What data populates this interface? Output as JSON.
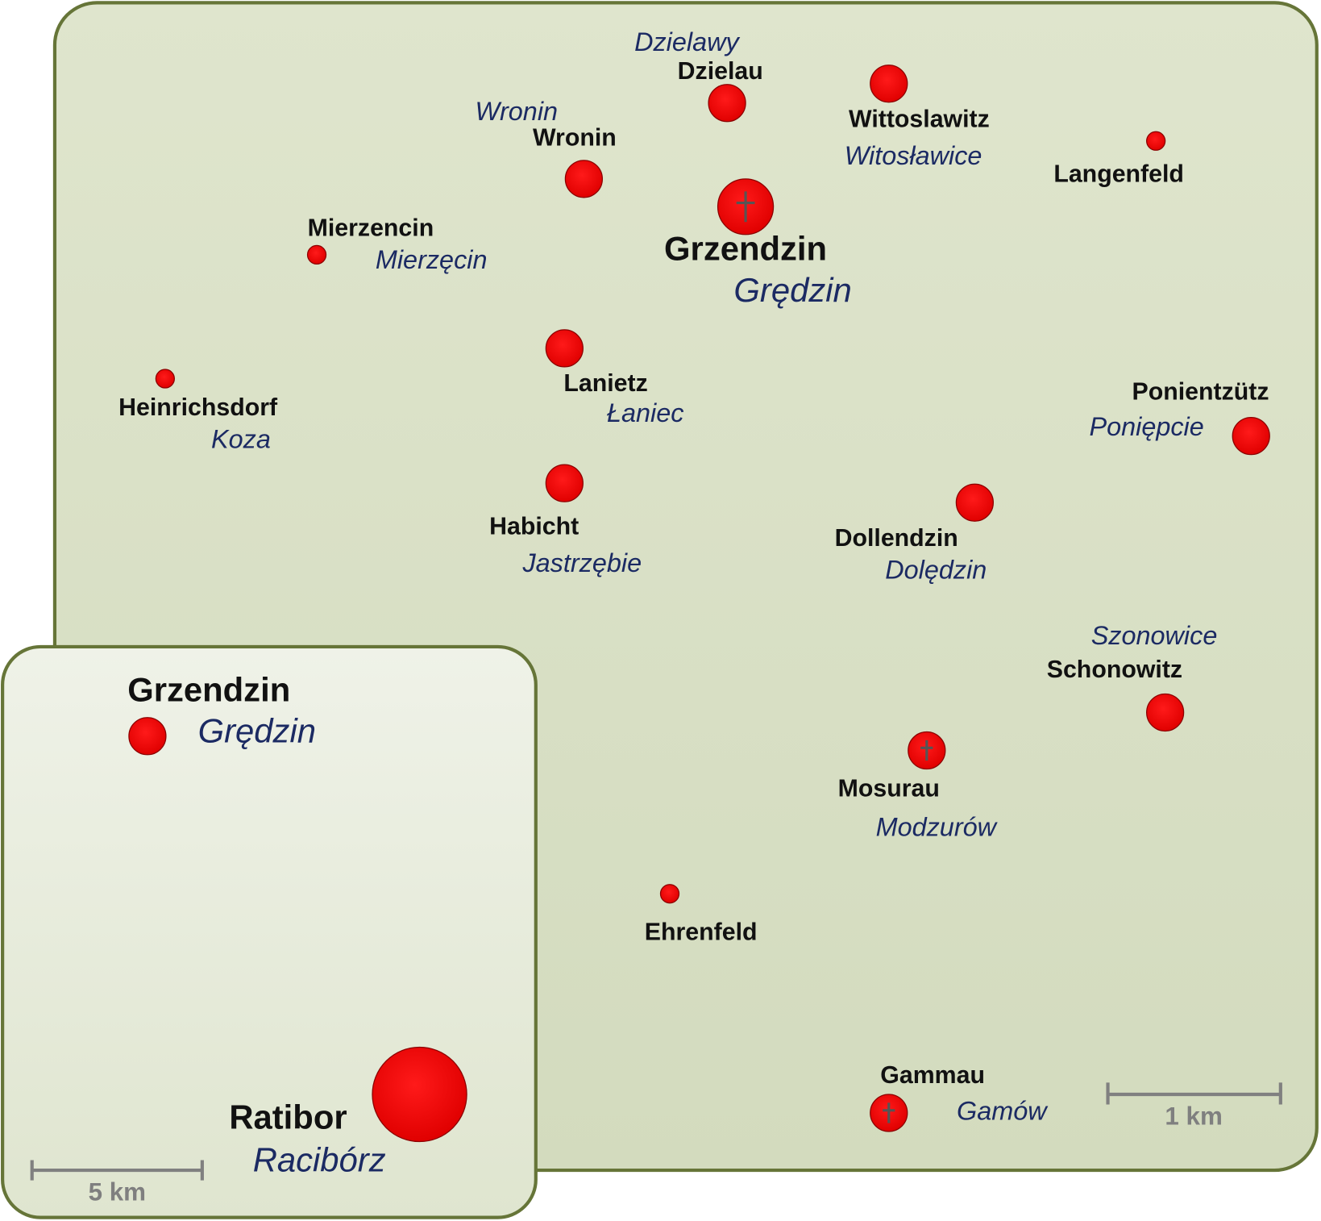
{
  "main_map": {
    "places": [
      {
        "german": "Dzielau",
        "polish": "Dzielawy"
      },
      {
        "german": "Wronin",
        "polish": "Wronin"
      },
      {
        "german": "Wittoslawitz",
        "polish": "Witosławice"
      },
      {
        "german": "Langenfeld"
      },
      {
        "german": "Grzendzin",
        "polish": "Grędzin"
      },
      {
        "german": "Mierzencin",
        "polish": "Mierzęcin"
      },
      {
        "german": "Heinrichsdorf",
        "polish": "Koza"
      },
      {
        "german": "Lanietz",
        "polish": "Łaniec"
      },
      {
        "german": "Ponientzütz",
        "polish": "Poniępcie"
      },
      {
        "german": "Habicht",
        "polish": "Jastrzębie"
      },
      {
        "german": "Dollendzin",
        "polish": "Dolędzin"
      },
      {
        "german": "Schonowitz",
        "polish": "Szonowice"
      },
      {
        "german": "Mosurau",
        "polish": "Modzurów"
      },
      {
        "german": "Ehrenfeld"
      },
      {
        "german": "Gammau",
        "polish": "Gamów"
      }
    ],
    "scale_label": "1 km"
  },
  "inset_map": {
    "places": [
      {
        "german": "Grzendzin",
        "polish": "Grędzin"
      },
      {
        "german": "Ratibor",
        "polish": "Racibórz"
      }
    ],
    "scale_label": "5 km"
  }
}
